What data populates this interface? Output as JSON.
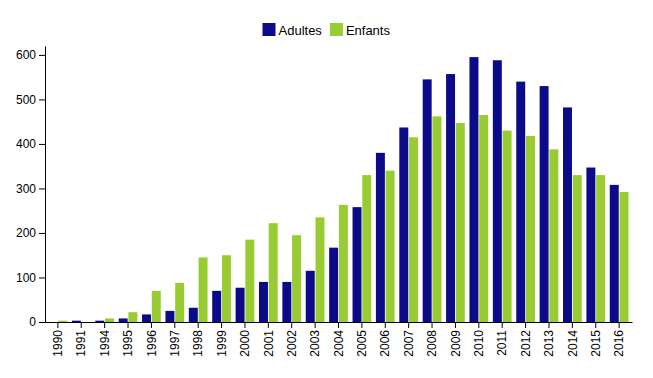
{
  "chart_data": {
    "type": "bar",
    "categories": [
      "1990",
      "1991",
      "1994",
      "1995",
      "1996",
      "1997",
      "1998",
      "1999",
      "2000",
      "2001",
      "2002",
      "2003",
      "2004",
      "2005",
      "2006",
      "2007",
      "2008",
      "2009",
      "2010",
      "2011",
      "2012",
      "2013",
      "2014",
      "2015",
      "2016"
    ],
    "series": [
      {
        "name": "Adultes",
        "color": "#0b0b8a",
        "values": [
          0,
          3,
          3,
          8,
          17,
          25,
          32,
          70,
          77,
          90,
          90,
          115,
          167,
          258,
          380,
          437,
          545,
          557,
          595,
          588,
          540,
          530,
          482,
          347,
          308
        ]
      },
      {
        "name": "Enfants",
        "color": "#99cc33",
        "values": [
          3,
          0,
          8,
          22,
          70,
          88,
          145,
          150,
          185,
          222,
          195,
          235,
          263,
          330,
          340,
          415,
          462,
          447,
          465,
          430,
          418,
          388,
          330,
          330,
          292
        ]
      }
    ],
    "ylim": [
      0,
      620
    ],
    "yticks": [
      0,
      100,
      200,
      300,
      400,
      500,
      600
    ],
    "grid": false,
    "legend": "top"
  }
}
